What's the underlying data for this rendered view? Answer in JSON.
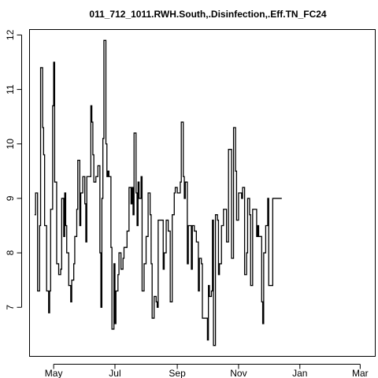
{
  "chart_data": {
    "type": "line",
    "title": "011_712_1011.RWH.South,.Disinfection,.Eff.TN_FC24",
    "xlabel": "",
    "ylabel": "",
    "step": true,
    "x_ticks": [
      {
        "label": "May",
        "x": "2011-05-01"
      },
      {
        "label": "Jul",
        "x": "2011-07-01"
      },
      {
        "label": "Sep",
        "x": "2011-09-01"
      },
      {
        "label": "Nov",
        "x": "2011-11-01"
      },
      {
        "label": "Jan",
        "x": "2012-01-01"
      },
      {
        "label": "Mar",
        "x": "2012-03-01"
      }
    ],
    "xlim": [
      "2011-04-07",
      "2012-03-16"
    ],
    "y_ticks": [
      7,
      8,
      9,
      10,
      11,
      12
    ],
    "ylim": [
      6.1,
      12.1
    ],
    "series": [
      {
        "color": "#000000",
        "points": [
          [
            "2011-04-12",
            8.7
          ],
          [
            "2011-04-13",
            9.1
          ],
          [
            "2011-04-15",
            7.3
          ],
          [
            "2011-04-17",
            8.5
          ],
          [
            "2011-04-18",
            11.4
          ],
          [
            "2011-04-20",
            10.3
          ],
          [
            "2011-04-21",
            9.8
          ],
          [
            "2011-04-22",
            8.5
          ],
          [
            "2011-04-24",
            7.3
          ],
          [
            "2011-04-26",
            6.9
          ],
          [
            "2011-04-27",
            7.3
          ],
          [
            "2011-04-28",
            8.8
          ],
          [
            "2011-04-30",
            10.7
          ],
          [
            "2011-05-01",
            11.5
          ],
          [
            "2011-05-02",
            9.3
          ],
          [
            "2011-05-04",
            7.8
          ],
          [
            "2011-05-06",
            7.6
          ],
          [
            "2011-05-08",
            7.7
          ],
          [
            "2011-05-09",
            9.0
          ],
          [
            "2011-05-11",
            8.3
          ],
          [
            "2011-05-12",
            9.1
          ],
          [
            "2011-05-13",
            8.5
          ],
          [
            "2011-05-14",
            8.0
          ],
          [
            "2011-05-16",
            7.4
          ],
          [
            "2011-05-18",
            7.1
          ],
          [
            "2011-05-19",
            7.5
          ],
          [
            "2011-05-21",
            7.8
          ],
          [
            "2011-05-22",
            8.3
          ],
          [
            "2011-05-24",
            8.8
          ],
          [
            "2011-05-25",
            9.7
          ],
          [
            "2011-05-27",
            8.5
          ],
          [
            "2011-05-28",
            9.1
          ],
          [
            "2011-05-30",
            9.4
          ],
          [
            "2011-06-01",
            8.9
          ],
          [
            "2011-06-02",
            8.2
          ],
          [
            "2011-06-03",
            9.4
          ],
          [
            "2011-06-05",
            9.4
          ],
          [
            "2011-06-07",
            10.7
          ],
          [
            "2011-06-08",
            10.4
          ],
          [
            "2011-06-09",
            9.8
          ],
          [
            "2011-06-10",
            9.3
          ],
          [
            "2011-06-12",
            9.4
          ],
          [
            "2011-06-14",
            9.6
          ],
          [
            "2011-06-16",
            8.0
          ],
          [
            "2011-06-17",
            7.0
          ],
          [
            "2011-06-18",
            9.0
          ],
          [
            "2011-06-19",
            10.1
          ],
          [
            "2011-06-20",
            11.9
          ],
          [
            "2011-06-22",
            10.0
          ],
          [
            "2011-06-23",
            9.4
          ],
          [
            "2011-06-24",
            9.5
          ],
          [
            "2011-06-25",
            9.4
          ],
          [
            "2011-06-27",
            8.1
          ],
          [
            "2011-06-28",
            6.6
          ],
          [
            "2011-06-30",
            7.8
          ],
          [
            "2011-07-01",
            6.7
          ],
          [
            "2011-07-02",
            7.3
          ],
          [
            "2011-07-04",
            7.6
          ],
          [
            "2011-07-05",
            8.0
          ],
          [
            "2011-07-07",
            7.7
          ],
          [
            "2011-07-09",
            7.9
          ],
          [
            "2011-07-10",
            8.1
          ],
          [
            "2011-07-12",
            8.1
          ],
          [
            "2011-07-13",
            8.4
          ],
          [
            "2011-07-15",
            9.2
          ],
          [
            "2011-07-17",
            8.9
          ],
          [
            "2011-07-18",
            9.2
          ],
          [
            "2011-07-19",
            8.7
          ],
          [
            "2011-07-20",
            10.2
          ],
          [
            "2011-07-22",
            9.1
          ],
          [
            "2011-07-23",
            8.5
          ],
          [
            "2011-07-24",
            9.3
          ],
          [
            "2011-07-25",
            9.0
          ],
          [
            "2011-07-27",
            9.4
          ],
          [
            "2011-07-28",
            7.3
          ],
          [
            "2011-07-30",
            7.8
          ],
          [
            "2011-08-01",
            8.3
          ],
          [
            "2011-08-03",
            9.1
          ],
          [
            "2011-08-05",
            8.7
          ],
          [
            "2011-08-06",
            7.8
          ],
          [
            "2011-08-07",
            6.8
          ],
          [
            "2011-08-09",
            7.2
          ],
          [
            "2011-08-11",
            7.1
          ],
          [
            "2011-08-12",
            7.0
          ],
          [
            "2011-08-13",
            8.6
          ],
          [
            "2011-08-15",
            8.6
          ],
          [
            "2011-08-17",
            8.6
          ],
          [
            "2011-08-18",
            7.7
          ],
          [
            "2011-08-19",
            8.0
          ],
          [
            "2011-08-21",
            8.6
          ],
          [
            "2011-08-23",
            8.4
          ],
          [
            "2011-08-25",
            7.1
          ],
          [
            "2011-08-27",
            8.7
          ],
          [
            "2011-08-29",
            9.1
          ],
          [
            "2011-08-30",
            9.2
          ],
          [
            "2011-09-01",
            9.1
          ],
          [
            "2011-09-02",
            9.1
          ],
          [
            "2011-09-04",
            9.3
          ],
          [
            "2011-09-05",
            10.4
          ],
          [
            "2011-09-07",
            9.4
          ],
          [
            "2011-09-08",
            9.0
          ],
          [
            "2011-09-09",
            9.3
          ],
          [
            "2011-09-11",
            7.8
          ],
          [
            "2011-09-12",
            8.5
          ],
          [
            "2011-09-14",
            8.5
          ],
          [
            "2011-09-15",
            7.7
          ],
          [
            "2011-09-16",
            8.5
          ],
          [
            "2011-09-18",
            8.4
          ],
          [
            "2011-09-20",
            8.2
          ],
          [
            "2011-09-22",
            7.3
          ],
          [
            "2011-09-23",
            7.9
          ],
          [
            "2011-09-25",
            7.8
          ],
          [
            "2011-09-26",
            6.8
          ],
          [
            "2011-09-28",
            6.8
          ],
          [
            "2011-10-01",
            6.4
          ],
          [
            "2011-10-02",
            7.4
          ],
          [
            "2011-10-03",
            7.2
          ],
          [
            "2011-10-05",
            7.3
          ],
          [
            "2011-10-06",
            8.6
          ],
          [
            "2011-10-07",
            6.3
          ],
          [
            "2011-10-09",
            8.7
          ],
          [
            "2011-10-11",
            8.6
          ],
          [
            "2011-10-12",
            7.6
          ],
          [
            "2011-10-13",
            7.8
          ],
          [
            "2011-10-15",
            8.5
          ],
          [
            "2011-10-17",
            8.8
          ],
          [
            "2011-10-19",
            8.8
          ],
          [
            "2011-10-20",
            8.2
          ],
          [
            "2011-10-22",
            9.9
          ],
          [
            "2011-10-24",
            9.9
          ],
          [
            "2011-10-25",
            7.9
          ],
          [
            "2011-10-27",
            10.3
          ],
          [
            "2011-10-29",
            9.5
          ],
          [
            "2011-10-30",
            8.6
          ],
          [
            "2011-11-01",
            9.1
          ],
          [
            "2011-11-03",
            9.1
          ],
          [
            "2011-11-04",
            9.0
          ],
          [
            "2011-11-05",
            9.2
          ],
          [
            "2011-11-07",
            7.6
          ],
          [
            "2011-11-09",
            8.0
          ],
          [
            "2011-11-10",
            9.0
          ],
          [
            "2011-11-12",
            8.7
          ],
          [
            "2011-11-13",
            7.4
          ],
          [
            "2011-11-15",
            8.8
          ],
          [
            "2011-11-17",
            8.8
          ],
          [
            "2011-11-19",
            8.3
          ],
          [
            "2011-11-20",
            8.5
          ],
          [
            "2011-11-21",
            8.3
          ],
          [
            "2011-11-23",
            8.3
          ],
          [
            "2011-11-24",
            7.1
          ],
          [
            "2011-11-25",
            6.7
          ],
          [
            "2011-11-26",
            8.0
          ],
          [
            "2011-11-28",
            8.5
          ],
          [
            "2011-11-30",
            9.0
          ],
          [
            "2011-12-01",
            7.4
          ],
          [
            "2011-12-02",
            7.4
          ],
          [
            "2011-12-03",
            7.4
          ],
          [
            "2011-12-05",
            9.0
          ],
          [
            "2011-12-10",
            9.0
          ],
          [
            "2011-12-14",
            9.0
          ]
        ]
      }
    ]
  }
}
